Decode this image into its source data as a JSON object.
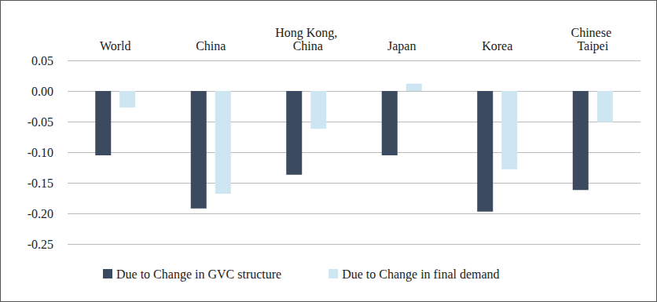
{
  "chart_data": {
    "type": "bar",
    "categories": [
      "World",
      "China",
      "Hong Kong, China",
      "Japan",
      "Korea",
      "Chinese Taipei"
    ],
    "series": [
      {
        "name": "Due to Change in GVC structure",
        "color": "#3b4a5e",
        "values": [
          -0.105,
          -0.192,
          -0.137,
          -0.105,
          -0.197,
          -0.162
        ]
      },
      {
        "name": "Due to Change in final demand",
        "color": "#cde6f2",
        "values": [
          -0.027,
          -0.168,
          -0.062,
          0.012,
          -0.128,
          -0.051
        ]
      }
    ],
    "ylim": [
      -0.25,
      0.05
    ],
    "yticks": [
      -0.25,
      {
        "value": -0.2,
        "label": "-0.20"
      },
      -0.15,
      {
        "value": -0.1,
        "label": "-0.10"
      },
      -0.05,
      {
        "value": 0,
        "label": "0.00"
      },
      0.05
    ],
    "grid": true,
    "legend": "bottom-left"
  }
}
